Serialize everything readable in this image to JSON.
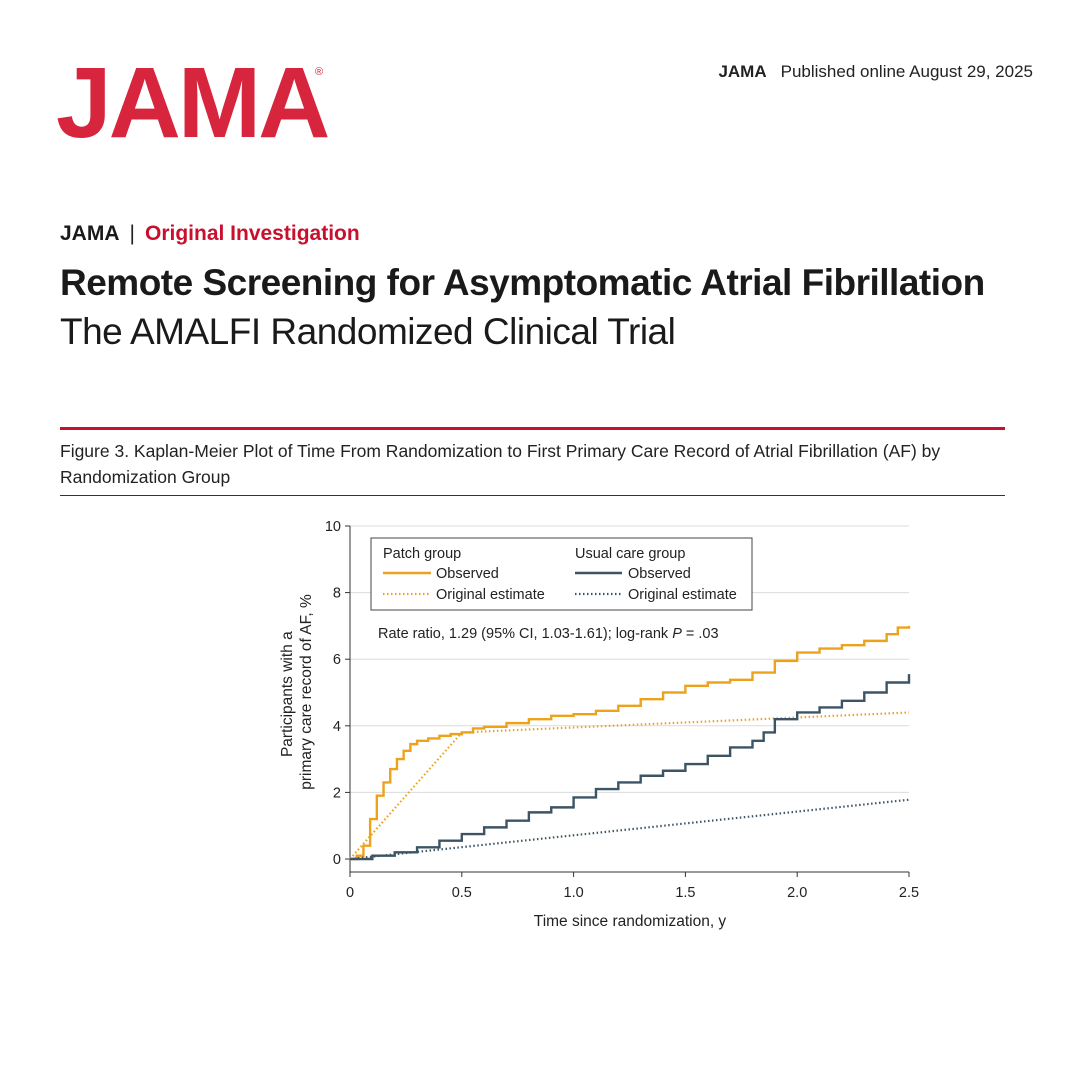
{
  "header": {
    "logo": "JAMA",
    "logo_mark": "®",
    "journal": "JAMA",
    "published": "Published online August  29, 2025"
  },
  "article": {
    "journal": "JAMA",
    "separator": "|",
    "type": "Original Investigation",
    "title": "Remote Screening for Asymptomatic Atrial Fibrillation",
    "subtitle": "The AMALFI Randomized Clinical Trial"
  },
  "figure": {
    "caption": "Figure 3. Kaplan-Meier Plot of Time From Randomization to First Primary Care Record of Atrial Fibrillation (AF) by Randomization Group"
  },
  "colors": {
    "accent": "#d6253c",
    "patch": "#eda21b",
    "usual": "#3c5463",
    "grid": "#dcdcdc"
  },
  "chart_data": {
    "type": "line",
    "xlabel": "Time since randomization, y",
    "ylabel": [
      "Participants with a",
      "primary care record of AF, %"
    ],
    "xlim": [
      0,
      2.5
    ],
    "ylim": [
      0,
      10
    ],
    "xticks": [
      0,
      0.5,
      1.0,
      1.5,
      2.0,
      2.5
    ],
    "xtick_labels": [
      "0",
      "0.5",
      "1.0",
      "1.5",
      "2.0",
      "2.5"
    ],
    "yticks": [
      0,
      2,
      4,
      6,
      8,
      10
    ],
    "ytick_labels": [
      "0",
      "2",
      "4",
      "6",
      "8",
      "10"
    ],
    "grid": "horizontal",
    "legend": {
      "placement": "top-left",
      "groups": [
        {
          "title": "Patch group",
          "items": [
            "Observed",
            "Original estimate"
          ]
        },
        {
          "title": "Usual care group",
          "items": [
            "Observed",
            "Original estimate"
          ]
        }
      ]
    },
    "annotation": {
      "prefix": "Rate ratio, 1.29 (95% CI, 1.03-1.61); log-rank ",
      "italic": "P",
      "suffix": " = .03"
    },
    "series": [
      {
        "group": "patch",
        "style": "solid",
        "x": [
          0,
          0.03,
          0.06,
          0.09,
          0.12,
          0.15,
          0.18,
          0.21,
          0.24,
          0.27,
          0.3,
          0.35,
          0.4,
          0.45,
          0.5,
          0.55,
          0.6,
          0.7,
          0.8,
          0.9,
          1.0,
          1.1,
          1.2,
          1.3,
          1.4,
          1.5,
          1.6,
          1.7,
          1.8,
          1.9,
          2.0,
          2.1,
          2.2,
          2.3,
          2.4,
          2.45,
          2.5
        ],
        "y": [
          0,
          0.1,
          0.4,
          1.2,
          1.9,
          2.3,
          2.7,
          3.0,
          3.25,
          3.45,
          3.55,
          3.62,
          3.7,
          3.75,
          3.8,
          3.92,
          3.97,
          4.08,
          4.2,
          4.3,
          4.35,
          4.45,
          4.6,
          4.8,
          5.0,
          5.2,
          5.3,
          5.38,
          5.6,
          5.95,
          6.2,
          6.32,
          6.42,
          6.55,
          6.75,
          6.95,
          7.0
        ]
      },
      {
        "group": "patch",
        "style": "dotted",
        "x": [
          0,
          0.5,
          2.5
        ],
        "y": [
          0,
          3.8,
          4.4
        ]
      },
      {
        "group": "usual",
        "style": "solid",
        "x": [
          0,
          0.1,
          0.2,
          0.3,
          0.4,
          0.5,
          0.6,
          0.7,
          0.8,
          0.9,
          1.0,
          1.1,
          1.2,
          1.3,
          1.4,
          1.5,
          1.6,
          1.7,
          1.8,
          1.85,
          1.9,
          2.0,
          2.1,
          2.2,
          2.3,
          2.4,
          2.5
        ],
        "y": [
          0,
          0.1,
          0.2,
          0.35,
          0.55,
          0.75,
          0.95,
          1.15,
          1.4,
          1.55,
          1.85,
          2.1,
          2.3,
          2.5,
          2.65,
          2.85,
          3.1,
          3.35,
          3.55,
          3.8,
          4.2,
          4.4,
          4.55,
          4.75,
          5.0,
          5.3,
          5.55
        ]
      },
      {
        "group": "usual",
        "style": "dotted",
        "x": [
          0,
          2.5
        ],
        "y": [
          0,
          1.78
        ]
      }
    ]
  }
}
